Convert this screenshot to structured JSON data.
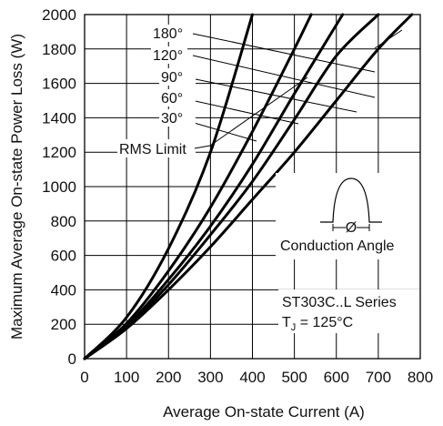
{
  "chart_data": {
    "type": "line",
    "xlabel": "Average On-state Current (A)",
    "ylabel": "Maximum Average On-state Power Loss (W)",
    "xlim": [
      0,
      800
    ],
    "ylim": [
      0,
      2000
    ],
    "x_ticks": [
      "0",
      "100",
      "200",
      "300",
      "400",
      "500",
      "600",
      "700",
      "800"
    ],
    "y_ticks": [
      "0",
      "200",
      "400",
      "600",
      "800",
      "1000",
      "1200",
      "1400",
      "1600",
      "1800",
      "2000"
    ],
    "grid": true,
    "series": [
      {
        "name": "180°",
        "x": [
          0,
          100,
          200,
          300,
          400,
          500,
          600,
          700,
          780
        ],
        "y": [
          0,
          175,
          400,
          650,
          925,
          1200,
          1500,
          1800,
          2000
        ]
      },
      {
        "name": "120°",
        "x": [
          0,
          100,
          200,
          300,
          400,
          500,
          600,
          700
        ],
        "y": [
          0,
          182,
          430,
          720,
          1030,
          1390,
          1760,
          2000
        ]
      },
      {
        "name": "90°",
        "x": [
          0,
          100,
          200,
          300,
          400,
          500,
          615
        ],
        "y": [
          0,
          190,
          460,
          770,
          1130,
          1540,
          2000
        ]
      },
      {
        "name": "60°",
        "x": [
          0,
          100,
          200,
          300,
          400,
          500,
          540
        ],
        "y": [
          0,
          205,
          510,
          880,
          1320,
          1800,
          2000
        ]
      },
      {
        "name": "30°",
        "x": [
          0,
          100,
          200,
          300,
          400
        ],
        "y": [
          0,
          240,
          640,
          1200,
          2000
        ]
      }
    ],
    "rms_limit_label": "RMS Limit",
    "annotations": {
      "conduction_angle": "Conduction Angle",
      "phi_symbol": "Ø",
      "series_title": "ST303C..L Series",
      "tj_symbol": "T",
      "tj_subscript": "J",
      "tj_value": " = 125°C"
    }
  }
}
